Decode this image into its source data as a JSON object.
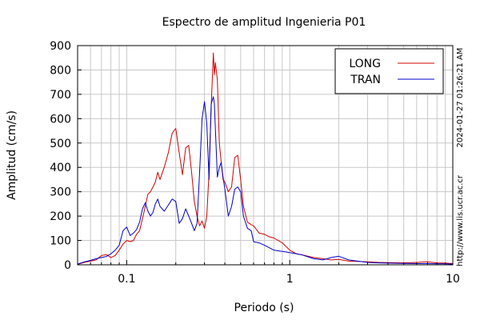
{
  "chart_data": {
    "type": "line",
    "title": "Espectro de amplitud Ingenieria P01",
    "xlabel": "Periodo (s)",
    "ylabel": "Amplitud (cm/s)",
    "xscale": "log",
    "xlim": [
      0.05,
      10
    ],
    "ylim": [
      0,
      900
    ],
    "xticks": [
      0.1,
      1,
      10
    ],
    "xtick_labels": [
      "0.1",
      "1",
      "10"
    ],
    "yticks": [
      0,
      100,
      200,
      300,
      400,
      500,
      600,
      700,
      800,
      900
    ],
    "ytick_labels": [
      "0",
      "100",
      "200",
      "300",
      "400",
      "500",
      "600",
      "700",
      "800",
      "900"
    ],
    "grid": true,
    "legend_position": "top-right",
    "side_annotations": [
      "2024-01-27 01:26:21 AM",
      "http://www.lis.ucr.ac.cr"
    ],
    "series": [
      {
        "name": "LONG",
        "color": "#d40000",
        "x": [
          0.05,
          0.055,
          0.06,
          0.065,
          0.07,
          0.075,
          0.08,
          0.085,
          0.09,
          0.095,
          0.1,
          0.105,
          0.11,
          0.115,
          0.12,
          0.125,
          0.13,
          0.135,
          0.14,
          0.145,
          0.15,
          0.155,
          0.16,
          0.17,
          0.18,
          0.19,
          0.2,
          0.21,
          0.22,
          0.23,
          0.24,
          0.25,
          0.26,
          0.27,
          0.28,
          0.29,
          0.3,
          0.31,
          0.32,
          0.33,
          0.34,
          0.345,
          0.35,
          0.36,
          0.37,
          0.38,
          0.39,
          0.4,
          0.42,
          0.44,
          0.46,
          0.48,
          0.5,
          0.52,
          0.55,
          0.58,
          0.6,
          0.65,
          0.7,
          0.75,
          0.8,
          0.9,
          1.0,
          1.1,
          1.2,
          1.4,
          1.6,
          1.8,
          2.0,
          2.3,
          2.6,
          3.0,
          3.5,
          4.0,
          5.0,
          6.0,
          7.0,
          8.0,
          9.0,
          10.0
        ],
        "values": [
          2,
          10,
          15,
          20,
          38,
          42,
          30,
          38,
          60,
          85,
          100,
          95,
          100,
          125,
          140,
          190,
          240,
          290,
          300,
          320,
          340,
          380,
          350,
          400,
          460,
          540,
          560,
          460,
          370,
          480,
          490,
          380,
          260,
          200,
          160,
          180,
          150,
          200,
          380,
          650,
          870,
          780,
          830,
          760,
          500,
          420,
          350,
          340,
          300,
          320,
          440,
          450,
          350,
          240,
          175,
          165,
          160,
          130,
          125,
          115,
          110,
          90,
          60,
          45,
          40,
          30,
          25,
          20,
          22,
          15,
          14,
          12,
          10,
          9,
          8,
          10,
          12,
          8,
          7,
          5
        ]
      },
      {
        "name": "TRAN",
        "color": "#0000cc",
        "x": [
          0.05,
          0.055,
          0.06,
          0.065,
          0.07,
          0.075,
          0.08,
          0.085,
          0.09,
          0.095,
          0.1,
          0.105,
          0.11,
          0.115,
          0.12,
          0.125,
          0.13,
          0.135,
          0.14,
          0.145,
          0.15,
          0.155,
          0.16,
          0.17,
          0.18,
          0.19,
          0.2,
          0.21,
          0.22,
          0.23,
          0.24,
          0.25,
          0.26,
          0.27,
          0.28,
          0.29,
          0.3,
          0.31,
          0.32,
          0.33,
          0.34,
          0.345,
          0.35,
          0.36,
          0.37,
          0.38,
          0.39,
          0.4,
          0.42,
          0.44,
          0.46,
          0.48,
          0.5,
          0.52,
          0.55,
          0.58,
          0.6,
          0.65,
          0.7,
          0.75,
          0.8,
          0.9,
          1.0,
          1.1,
          1.2,
          1.4,
          1.6,
          1.8,
          2.0,
          2.3,
          2.6,
          3.0,
          3.5,
          4.0,
          5.0,
          6.0,
          7.0,
          8.0,
          9.0,
          10.0
        ],
        "values": [
          3,
          12,
          18,
          25,
          30,
          34,
          45,
          60,
          80,
          140,
          155,
          120,
          130,
          145,
          175,
          230,
          255,
          220,
          200,
          215,
          250,
          270,
          240,
          220,
          245,
          270,
          260,
          170,
          190,
          230,
          200,
          170,
          140,
          170,
          380,
          600,
          670,
          580,
          350,
          660,
          690,
          660,
          560,
          360,
          400,
          420,
          360,
          310,
          200,
          240,
          310,
          320,
          300,
          200,
          150,
          140,
          95,
          90,
          80,
          70,
          60,
          55,
          50,
          45,
          40,
          25,
          20,
          30,
          35,
          20,
          15,
          10,
          8,
          7,
          6,
          5,
          5,
          4,
          4,
          3
        ]
      }
    ]
  }
}
